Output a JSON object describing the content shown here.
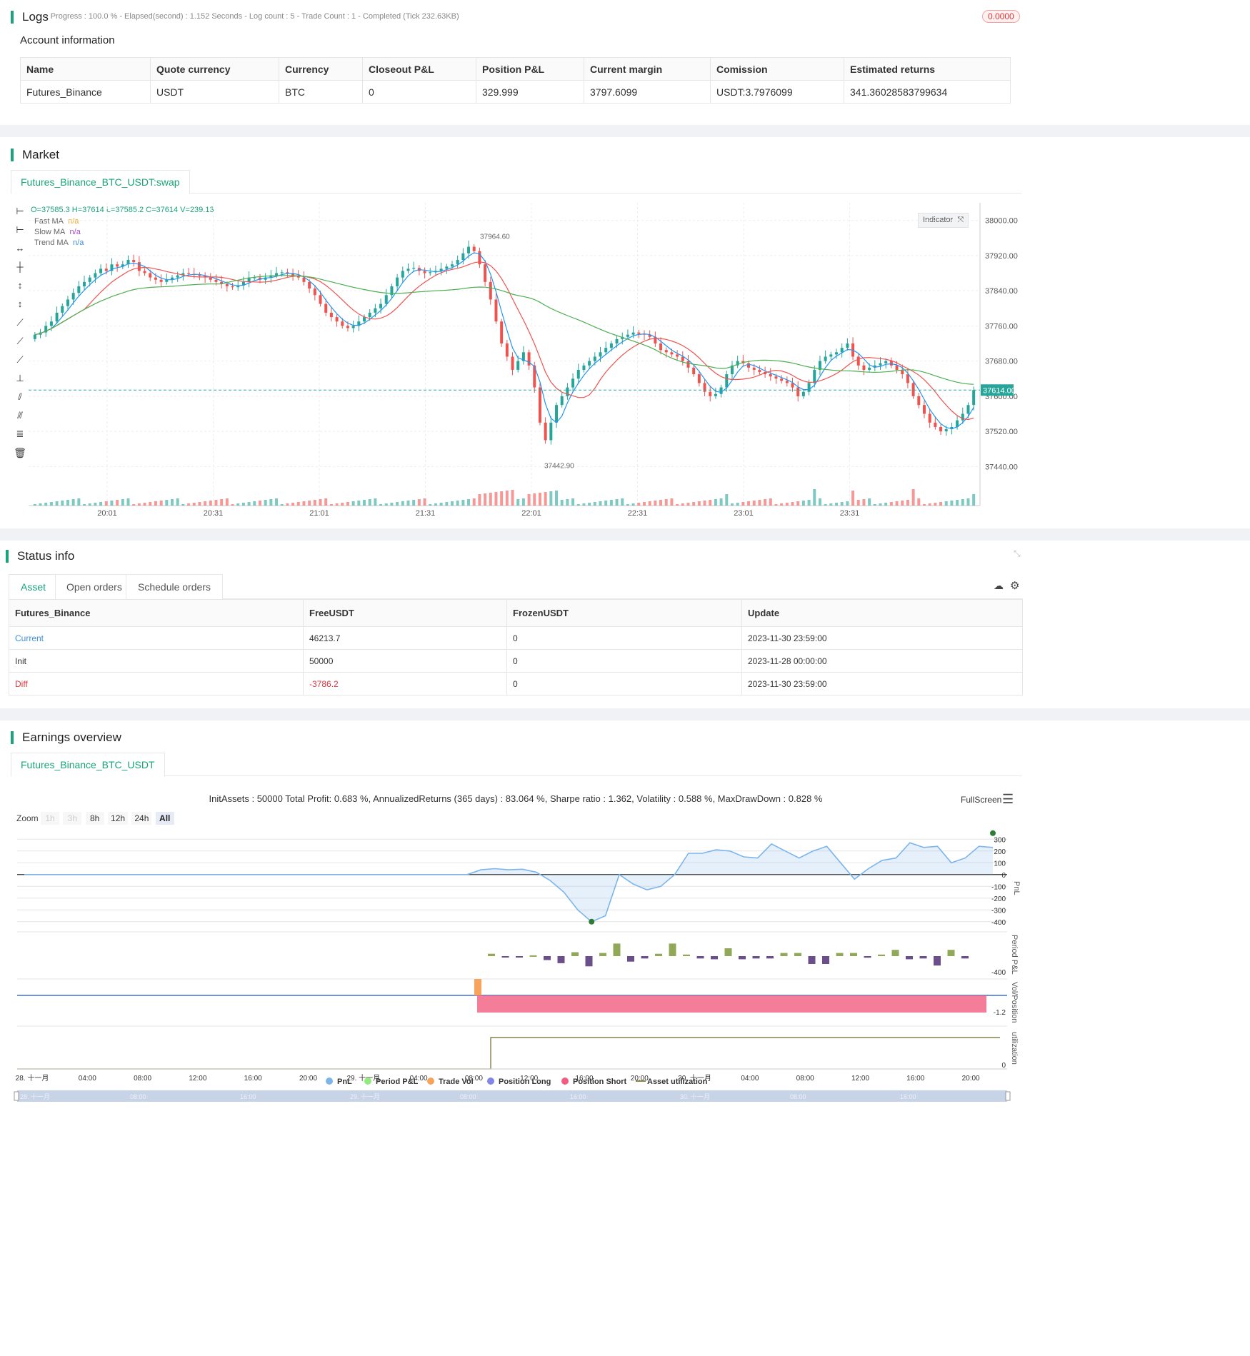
{
  "logs": {
    "title": "Logs",
    "status": "- Progress : 100.0 % - Elapsed(second) : 1.152  Seconds - Log count : 5 - Trade Count : 1 - Completed (Tick 232.63KB)",
    "badge": "0.0000"
  },
  "account": {
    "title": "Account information",
    "headers": [
      "Name",
      "Quote currency",
      "Currency",
      "Closeout P&L",
      "Position P&L",
      "Current margin",
      "Comission",
      "Estimated returns"
    ],
    "row": [
      "Futures_Binance",
      "USDT",
      "BTC",
      "0",
      "329.999",
      "3797.6099",
      "USDT:3.7976099",
      "341.36028583799634"
    ]
  },
  "market": {
    "title": "Market",
    "tab": "Futures_Binance_BTC_USDT:swap",
    "ohlc": "O=37585.3 H=37614 L=37585.2 C=37614 V=239.13",
    "legend": [
      {
        "name": "Fast MA",
        "value": "n/a",
        "color": "#f5a623"
      },
      {
        "name": "Slow MA",
        "value": "n/a",
        "color": "#a64dc9"
      },
      {
        "name": "Trend MA",
        "value": "n/a",
        "color": "#3d8fd9"
      }
    ],
    "indicator_btn": "Indicator",
    "high_label": "37964.60",
    "low_label": "37442.90",
    "last_price": "37614.00",
    "chart_data": {
      "type": "candlestick",
      "x_ticks": [
        "20:01",
        "20:31",
        "21:01",
        "21:31",
        "22:01",
        "22:31",
        "23:01",
        "23:31"
      ],
      "y_ticks": [
        "38000.00",
        "37920.00",
        "37840.00",
        "37760.00",
        "37680.00",
        "37600.00",
        "37520.00",
        "37440.00"
      ],
      "ylim": [
        37400,
        38040
      ],
      "close": [
        37740,
        37745,
        37760,
        37770,
        37790,
        37805,
        37820,
        37835,
        37850,
        37860,
        37870,
        37880,
        37890,
        37885,
        37900,
        37895,
        37900,
        37910,
        37905,
        37885,
        37880,
        37870,
        37865,
        37860,
        37865,
        37870,
        37875,
        37880,
        37878,
        37876,
        37874,
        37870,
        37865,
        37860,
        37855,
        37850,
        37848,
        37852,
        37860,
        37870,
        37870,
        37865,
        37870,
        37875,
        37880,
        37882,
        37880,
        37875,
        37870,
        37860,
        37845,
        37830,
        37810,
        37790,
        37780,
        37770,
        37760,
        37755,
        37760,
        37770,
        37780,
        37790,
        37800,
        37810,
        37830,
        37850,
        37870,
        37885,
        37890,
        37892,
        37885,
        37880,
        37882,
        37885,
        37890,
        37895,
        37900,
        37910,
        37925,
        37940,
        37930,
        37900,
        37860,
        37820,
        37770,
        37720,
        37690,
        37660,
        37680,
        37700,
        37670,
        37620,
        37540,
        37500,
        37540,
        37580,
        37600,
        37620,
        37640,
        37660,
        37670,
        37680,
        37690,
        37700,
        37710,
        37720,
        37730,
        37735,
        37740,
        37745,
        37742,
        37740,
        37735,
        37720,
        37705,
        37700,
        37695,
        37690,
        37680,
        37665,
        37650,
        37630,
        37610,
        37600,
        37605,
        37620,
        37650,
        37670,
        37680,
        37675,
        37665,
        37660,
        37655,
        37650,
        37645,
        37640,
        37635,
        37630,
        37620,
        37600,
        37610,
        37630,
        37660,
        37680,
        37690,
        37695,
        37700,
        37710,
        37720,
        37690,
        37670,
        37660,
        37665,
        37670,
        37675,
        37680,
        37670,
        37660,
        37650,
        37630,
        37600,
        37580,
        37560,
        37540,
        37530,
        37520,
        37525,
        37530,
        37545,
        37560,
        37580,
        37614
      ],
      "vol_max": 1.0
    }
  },
  "status": {
    "title": "Status info",
    "tabs": [
      "Asset",
      "Open orders",
      "Schedule orders"
    ],
    "headers": [
      "Futures_Binance",
      "FreeUSDT",
      "FrozenUSDT",
      "Update"
    ],
    "rows": [
      [
        "Current",
        "46213.7",
        "0",
        "2023-11-30 23:59:00"
      ],
      [
        "Init",
        "50000",
        "0",
        "2023-11-28 00:00:00"
      ],
      [
        "Diff",
        "-3786.2",
        "0",
        "2023-11-30 23:59:00"
      ]
    ]
  },
  "earnings": {
    "title": "Earnings overview",
    "tab": "Futures_Binance_BTC_USDT",
    "summary": "InitAssets : 50000 Total Profit: 0.683 %, AnnualizedReturns (365 days) : 83.064 %, Sharpe ratio : 1.362, Volatility : 0.588 %, MaxDrawDown : 0.828 %",
    "fullscreen": "FullScreen",
    "zoom_label": "Zoom",
    "zoom_buttons": [
      "1h",
      "3h",
      "8h",
      "12h",
      "24h",
      "All"
    ],
    "pnl_ticks": [
      "300",
      "200",
      "100",
      "0",
      "-100",
      "-200",
      "-300",
      "-400"
    ],
    "axis_labels": [
      "PnL",
      "Period P&L",
      "Vol/Position",
      "utilization"
    ],
    "period_tick": "-400",
    "vol_tick": "-1.2",
    "util_tick": "0",
    "x_ticks": [
      "28. 十一月",
      "04:00",
      "08:00",
      "12:00",
      "16:00",
      "20:00",
      "29. 十一月",
      "04:00",
      "08:00",
      "12:00",
      "16:00",
      "20:00",
      "30. 十一月",
      "04:00",
      "08:00",
      "12:00",
      "16:00",
      "20:00"
    ],
    "nav_ticks": [
      "28. 十一月",
      "08:00",
      "16:00",
      "29. 十一月",
      "08:00",
      "16:00",
      "30. 十一月",
      "08:00",
      "16:00"
    ],
    "legend": [
      {
        "name": "PnL",
        "color": "#7cb5ec"
      },
      {
        "name": "Period P&L",
        "color": "#90ed7d"
      },
      {
        "name": "Trade Vol",
        "color": "#f7a35c"
      },
      {
        "name": "Position Long",
        "color": "#8085e9"
      },
      {
        "name": "Position Short",
        "color": "#f15c80"
      },
      {
        "name": "Asset utilization",
        "color": "#8d8a4a"
      }
    ],
    "chart_data": {
      "type": "line",
      "pnl": [
        0,
        0,
        0,
        0,
        0,
        0,
        0,
        0,
        0,
        0,
        0,
        0,
        0,
        0,
        0,
        0,
        0,
        0,
        0,
        0,
        0,
        0,
        0,
        0,
        0,
        0,
        0,
        0,
        0,
        0,
        0,
        0,
        0,
        40,
        50,
        40,
        45,
        20,
        -50,
        -150,
        -300,
        -400,
        -350,
        0,
        -80,
        -130,
        -100,
        0,
        180,
        180,
        210,
        200,
        150,
        140,
        260,
        200,
        140,
        200,
        240,
        100,
        -40,
        50,
        120,
        140,
        270,
        230,
        240,
        100,
        140,
        240,
        230
      ],
      "period_pnl": [
        15,
        -5,
        -5,
        5,
        -25,
        -45,
        25,
        -65,
        20,
        80,
        -35,
        -15,
        15,
        80,
        10,
        -15,
        -20,
        50,
        -20,
        -15,
        -15,
        20,
        20,
        -50,
        -50,
        20,
        20,
        -10,
        10,
        40,
        -20,
        -15,
        -60,
        40,
        -15
      ]
    }
  }
}
